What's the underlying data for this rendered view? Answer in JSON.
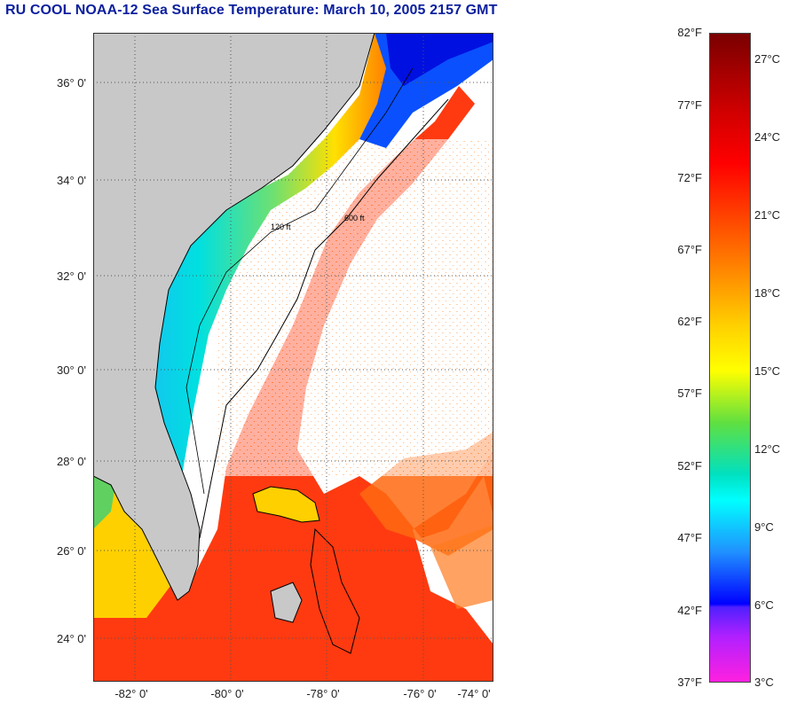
{
  "title": "RU COOL  NOAA-12  Sea Surface Temperature:  March 10, 2005 2157 GMT",
  "map": {
    "lat_labels": [
      "36° 0'",
      "34° 0'",
      "32° 0'",
      "30° 0'",
      "28° 0'",
      "26° 0'",
      "24° 0'"
    ],
    "lon_labels": [
      "-82° 0'",
      "-80° 0'",
      "-78° 0'",
      "-76° 0'",
      "-74° 0'"
    ],
    "contour_labels": [
      "120 ft",
      "600 ft"
    ],
    "colors": {
      "land": "#c8c8c8",
      "cloud": "#ffffff",
      "coast": "#000000"
    }
  },
  "colorbar": {
    "fahrenheit": [
      "82°F",
      "77°F",
      "72°F",
      "67°F",
      "62°F",
      "57°F",
      "52°F",
      "47°F",
      "42°F",
      "37°F"
    ],
    "celsius": [
      "27°C",
      "24°C",
      "21°C",
      "18°C",
      "15°C",
      "12°C",
      "9°C",
      "6°C",
      "3°C"
    ],
    "gradient_stops": [
      "#7a0000",
      "#ff0000",
      "#ff7a00",
      "#ffff00",
      "#00e000",
      "#00ffff",
      "#0060ff",
      "#0000ff",
      "#ff00ff"
    ]
  }
}
